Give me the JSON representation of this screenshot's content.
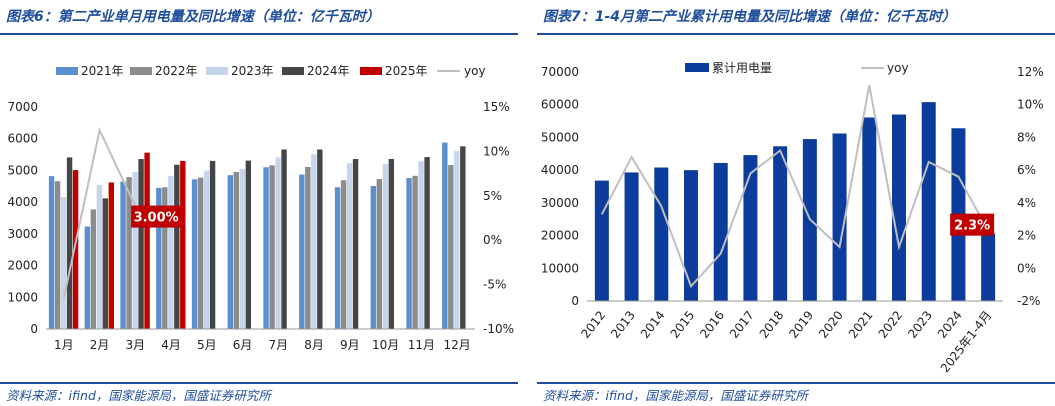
{
  "left": {
    "title": "图表6：第二产业单月用电量及同比增速（单位：亿千瓦时）",
    "source": "资料来源：ifind，国家能源局，国盛证券研究所",
    "chart_data": {
      "type": "bar",
      "categories": [
        "1月",
        "2月",
        "3月",
        "4月",
        "5月",
        "6月",
        "7月",
        "8月",
        "9月",
        "10月",
        "11月",
        "12月"
      ],
      "series": [
        {
          "name": "2021年",
          "color": "#5b8fd0",
          "values": [
            4820,
            3230,
            4650,
            4450,
            4720,
            4850,
            5100,
            4870,
            4470,
            4510,
            4760,
            5880
          ]
        },
        {
          "name": "2022年",
          "color": "#8c8c8c",
          "values": [
            4660,
            3770,
            4790,
            4470,
            4770,
            4950,
            5160,
            5110,
            4690,
            4730,
            4830,
            5170
          ]
        },
        {
          "name": "2023年",
          "color": "#c5d6ec",
          "values": [
            4160,
            4540,
            4950,
            4830,
            5000,
            5040,
            5410,
            5510,
            5230,
            5200,
            5290,
            5620
          ]
        },
        {
          "name": "2024年",
          "color": "#454545",
          "values": [
            5410,
            4120,
            5360,
            5180,
            5300,
            5310,
            5660,
            5660,
            5360,
            5360,
            5420,
            5760
          ]
        },
        {
          "name": "2025年",
          "color": "#c00000",
          "values": [
            5010,
            4620,
            5560,
            5300,
            null,
            null,
            null,
            null,
            null,
            null,
            null,
            null
          ]
        }
      ],
      "line": {
        "name": "yoy",
        "color": "#bfbfbf",
        "values": [
          -6.5,
          12.4,
          3.8,
          3.0
        ]
      },
      "ylim": [
        0,
        7000
      ],
      "yticks": [
        0,
        1000,
        2000,
        3000,
        4000,
        5000,
        6000,
        7000
      ],
      "y2lim": [
        -10,
        15
      ],
      "y2ticks": [
        "-10%",
        "-5%",
        "0%",
        "5%",
        "10%",
        "15%"
      ],
      "annotation": "3.00%"
    }
  },
  "right": {
    "title": "图表7：1-4月第二产业累计用电量及同比增速（单位：亿千瓦时）",
    "source": "资料来源：ifind，国家能源局，国盛证券研究所",
    "chart_data": {
      "type": "bar",
      "categories": [
        "2012",
        "2013",
        "2014",
        "2015",
        "2016",
        "2017",
        "2018",
        "2019",
        "2020",
        "2021",
        "2022",
        "2023",
        "2024",
        "2025年1-4月"
      ],
      "series": [
        {
          "name": "累计用电量",
          "color": "#0c3d9c",
          "values": [
            36800,
            39300,
            40800,
            40000,
            42200,
            44600,
            47300,
            49500,
            51200,
            56100,
            57000,
            60800,
            52800,
            20600
          ]
        }
      ],
      "line": {
        "name": "yoy",
        "color": "#bfbfbf",
        "values": [
          3.3,
          6.8,
          3.8,
          -1.1,
          0.9,
          5.8,
          7.2,
          3.0,
          1.3,
          11.2,
          1.3,
          6.5,
          5.6,
          2.3
        ]
      },
      "ylim": [
        0,
        70000
      ],
      "yticks": [
        0,
        10000,
        20000,
        30000,
        40000,
        50000,
        60000,
        70000
      ],
      "y2lim": [
        -2,
        12
      ],
      "y2ticks": [
        "-2%",
        "0%",
        "2%",
        "4%",
        "6%",
        "8%",
        "10%",
        "12%"
      ],
      "annotation": "2.3%"
    }
  }
}
